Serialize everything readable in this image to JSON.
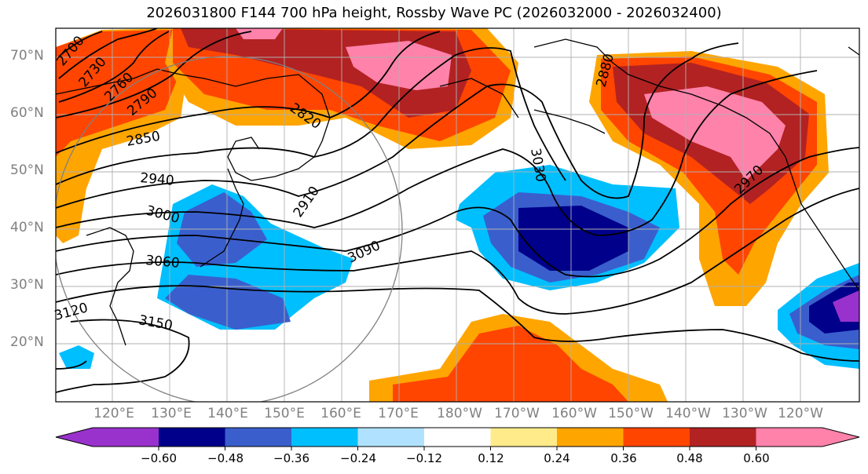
{
  "title": "2026031800 F144 700 hPa height, Rossby Wave PC (2026032000 - 2026032400)",
  "latitude_labels": [
    "70°N",
    "60°N",
    "50°N",
    "40°N",
    "30°N",
    "20°N"
  ],
  "longitude_labels": [
    "120°E",
    "130°E",
    "140°E",
    "150°E",
    "160°E",
    "170°E",
    "180°W",
    "170°W",
    "160°W",
    "150°W",
    "140°W",
    "130°W",
    "120°W"
  ],
  "contour_labels": [
    "2700",
    "2730",
    "2760",
    "2790",
    "2820",
    "2850",
    "2880",
    "2910",
    "2940",
    "2970",
    "3000",
    "3030",
    "3060",
    "3090",
    "3120",
    "3150"
  ],
  "colorbar": {
    "tick_labels": [
      "−0.60",
      "−0.48",
      "−0.36",
      "−0.24",
      "−0.12",
      "0.12",
      "0.24",
      "0.36",
      "0.48",
      "0.60"
    ],
    "colors": [
      "#9932cc",
      "#00008b",
      "#3a5fcd",
      "#00bfff",
      "#b0e2ff",
      "#ffffff",
      "#ffeb8a",
      "#ffa500",
      "#ff4500",
      "#b22222",
      "#ff82ab"
    ]
  },
  "colors": {
    "purple": "#9932cc",
    "navy": "#00008b",
    "blue": "#3a5fcd",
    "deep_sky": "#00bfff",
    "light_blue": "#b0e2ff",
    "light_yellow": "#ffeb8a",
    "orange": "#ffa500",
    "orange_red": "#ff4500",
    "firebrick": "#b22222",
    "pink": "#ff82ab"
  }
}
